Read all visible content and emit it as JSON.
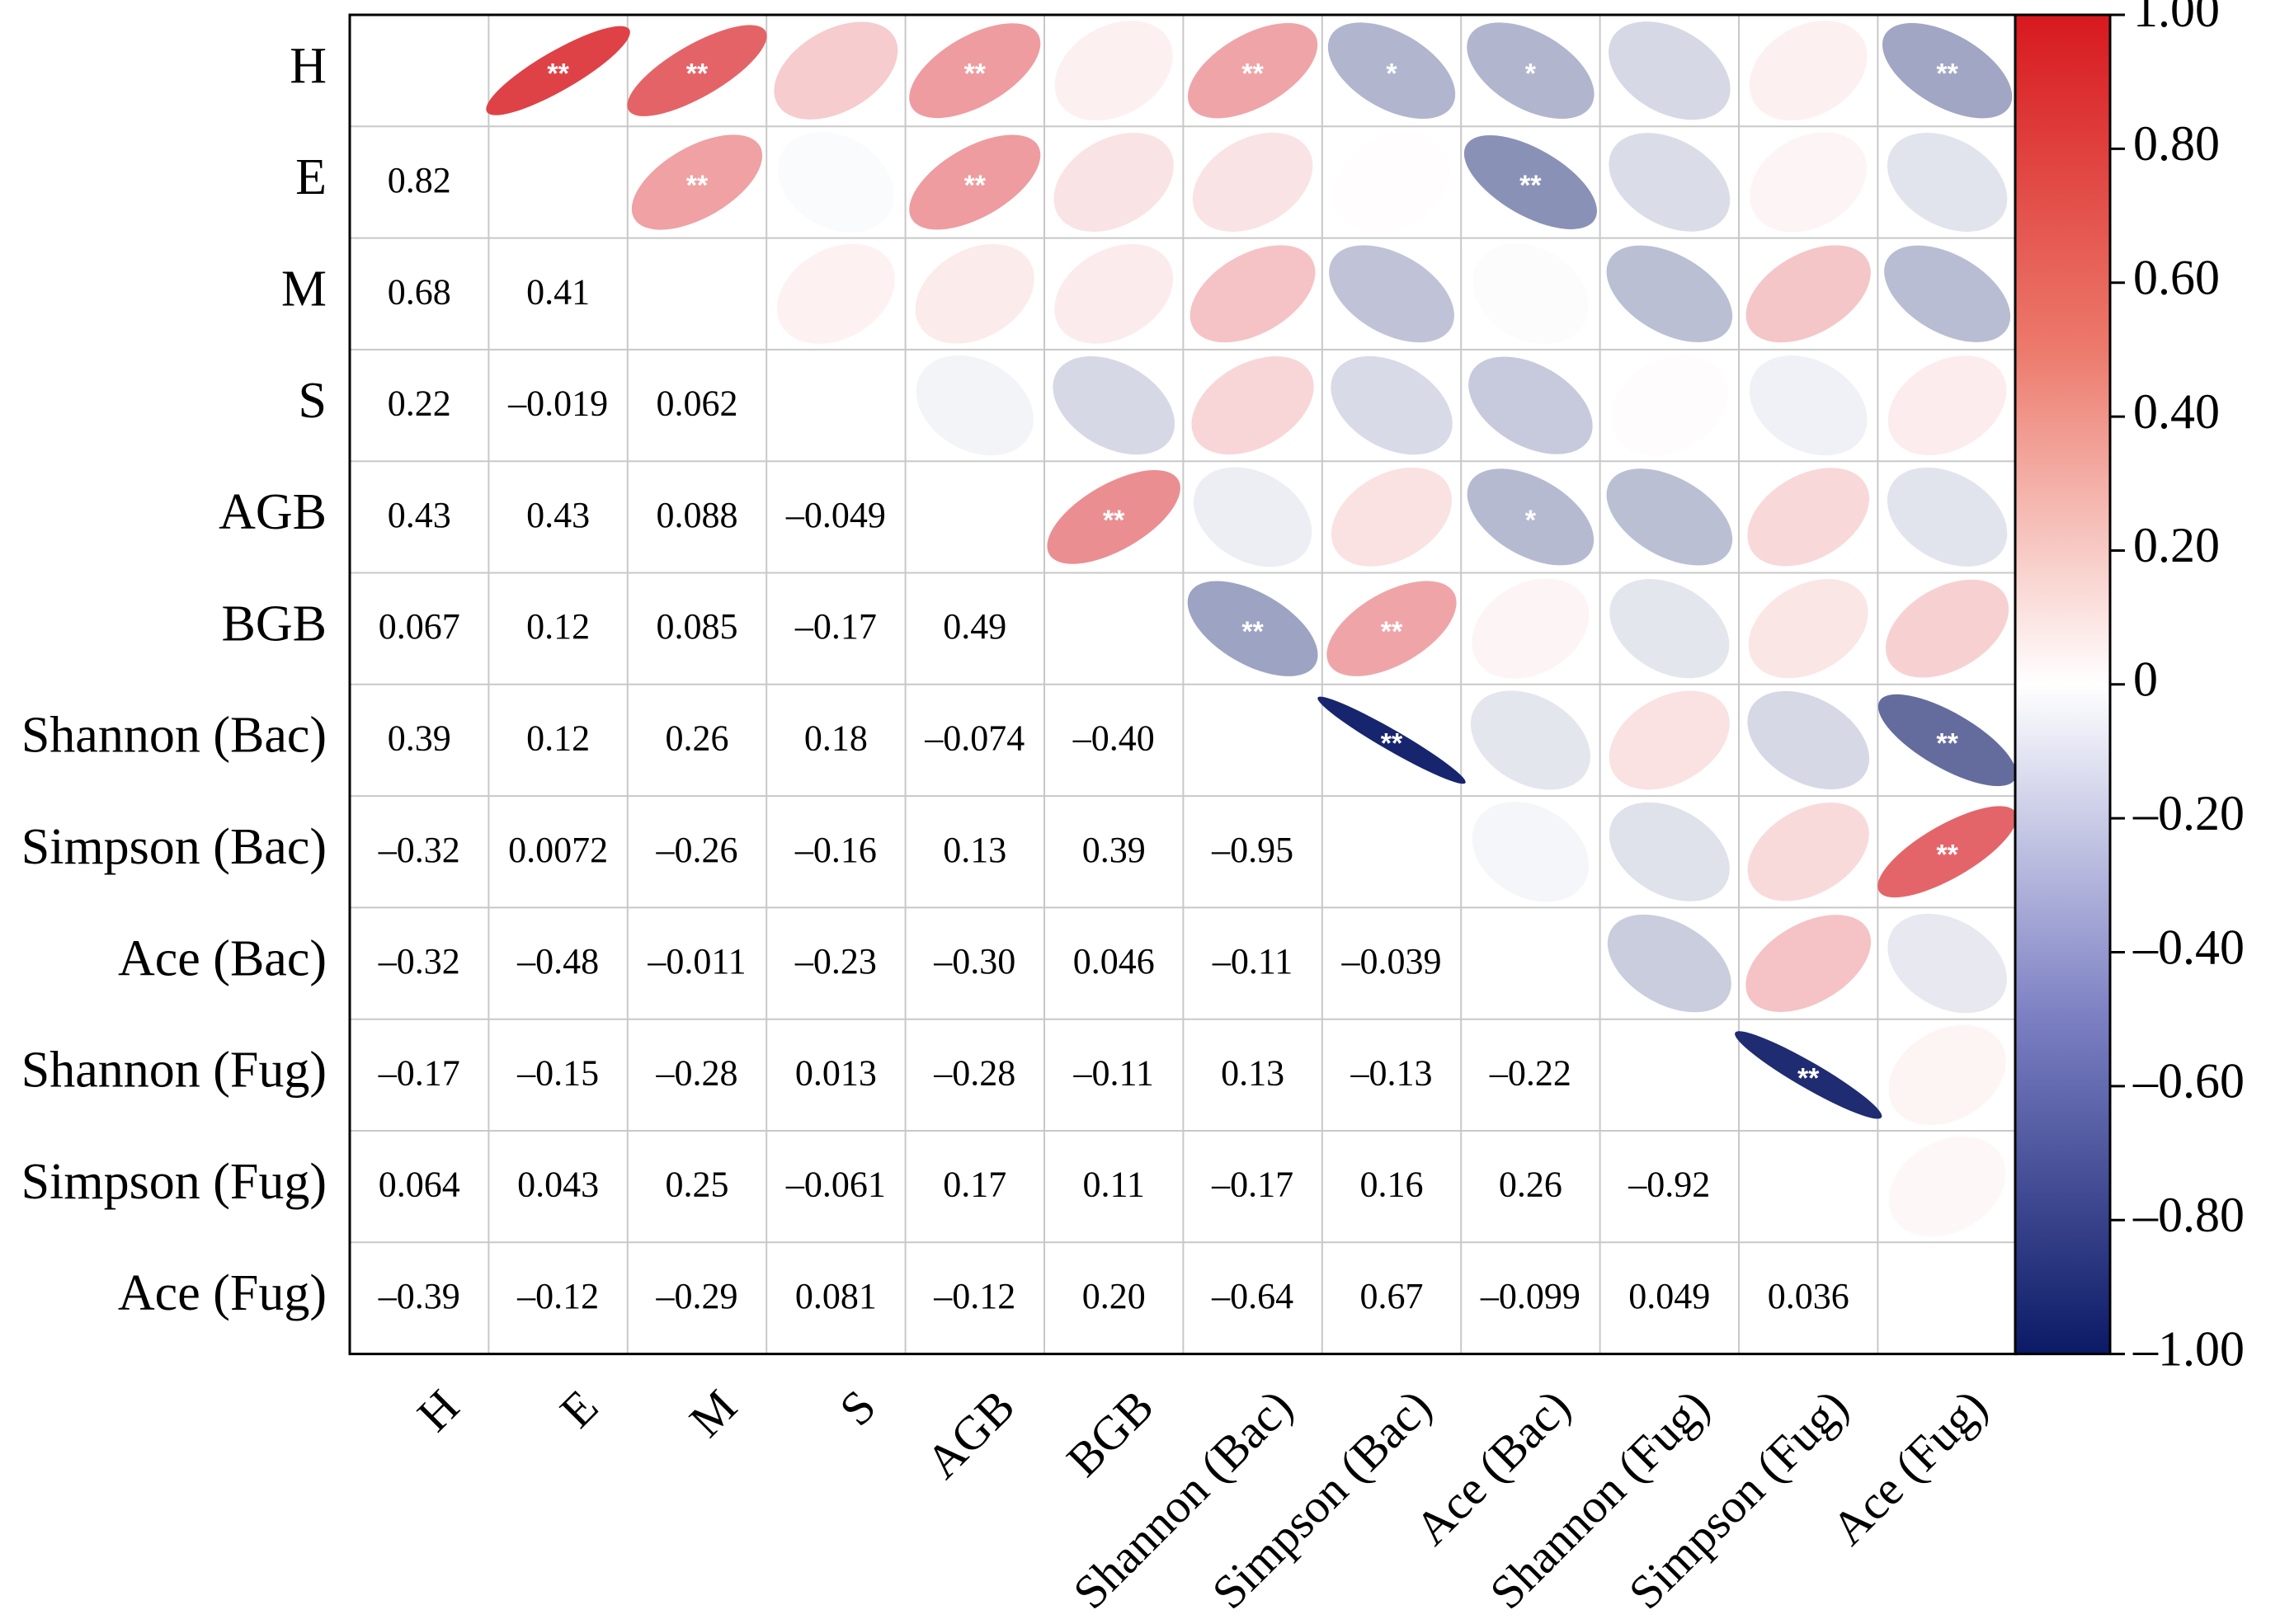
{
  "chart_data": {
    "type": "heatmap",
    "variables": [
      "H",
      "E",
      "M",
      "S",
      "AGB",
      "BGB",
      "Shannon (Bac)",
      "Simpson (Bac)",
      "Ace (Bac)",
      "Shannon (Fug)",
      "Simpson (Fug)",
      "Ace (Fug)"
    ],
    "lower_labels": [
      [],
      [
        "0.82"
      ],
      [
        "0.68",
        "0.41"
      ],
      [
        "0.22",
        "–0.019",
        "0.062"
      ],
      [
        "0.43",
        "0.43",
        "0.088",
        "–0.049"
      ],
      [
        "0.067",
        "0.12",
        "0.085",
        "–0.17",
        "0.49"
      ],
      [
        "0.39",
        "0.12",
        "0.26",
        "0.18",
        "–0.074",
        "–0.40"
      ],
      [
        "–0.32",
        "0.0072",
        "–0.26",
        "–0.16",
        "0.13",
        "0.39",
        "–0.95"
      ],
      [
        "–0.32",
        "–0.48",
        "–0.011",
        "–0.23",
        "–0.30",
        "0.046",
        "–0.11",
        "–0.039"
      ],
      [
        "–0.17",
        "–0.15",
        "–0.28",
        "0.013",
        "–0.28",
        "–0.11",
        "0.13",
        "–0.13",
        "–0.22"
      ],
      [
        "0.064",
        "0.043",
        "0.25",
        "–0.061",
        "0.17",
        "0.11",
        "–0.17",
        "0.16",
        "0.26",
        "–0.92"
      ],
      [
        "–0.39",
        "–0.12",
        "–0.29",
        "0.081",
        "–0.12",
        "0.20",
        "–0.64",
        "0.67",
        "–0.099",
        "0.049",
        "0.036"
      ]
    ],
    "upper_significance": [
      [
        "",
        "**",
        "**",
        "",
        "**",
        "",
        "**",
        "*",
        "*",
        "",
        "",
        "**"
      ],
      [
        "",
        "",
        "**",
        "",
        "**",
        "",
        "",
        "",
        "**",
        "",
        "",
        ""
      ],
      [
        "",
        "",
        "",
        "",
        "",
        "",
        "",
        "",
        "",
        "",
        "",
        ""
      ],
      [
        "",
        "",
        "",
        "",
        "",
        "",
        "",
        "",
        "",
        "",
        "",
        ""
      ],
      [
        "",
        "",
        "",
        "",
        "",
        "**",
        "",
        "",
        "*",
        "",
        "",
        ""
      ],
      [
        "",
        "",
        "",
        "",
        "",
        "",
        "**",
        "**",
        "",
        "",
        "",
        ""
      ],
      [
        "",
        "",
        "",
        "",
        "",
        "",
        "",
        "**",
        "",
        "",
        "",
        "**"
      ],
      [
        "",
        "",
        "",
        "",
        "",
        "",
        "",
        "",
        "",
        "",
        "",
        "**"
      ],
      [
        "",
        "",
        "",
        "",
        "",
        "",
        "",
        "",
        "",
        "",
        "",
        ""
      ],
      [
        "",
        "",
        "",
        "",
        "",
        "",
        "",
        "",
        "",
        "",
        "**",
        ""
      ],
      [
        "",
        "",
        "",
        "",
        "",
        "",
        "",
        "",
        "",
        "",
        "",
        ""
      ],
      [
        "",
        "",
        "",
        "",
        "",
        "",
        "",
        "",
        "",
        "",
        "",
        ""
      ]
    ],
    "colorbar": {
      "range": [
        -1,
        1
      ],
      "ticks": [
        "1.00",
        "0.80",
        "0.60",
        "0.40",
        "0.20",
        "0",
        "–0.20",
        "–0.40",
        "–0.60",
        "–0.80",
        "–1.00"
      ],
      "colors": {
        "negative": "#0b1a66",
        "zero": "#ffffff",
        "positive": "#d7191f"
      }
    }
  }
}
